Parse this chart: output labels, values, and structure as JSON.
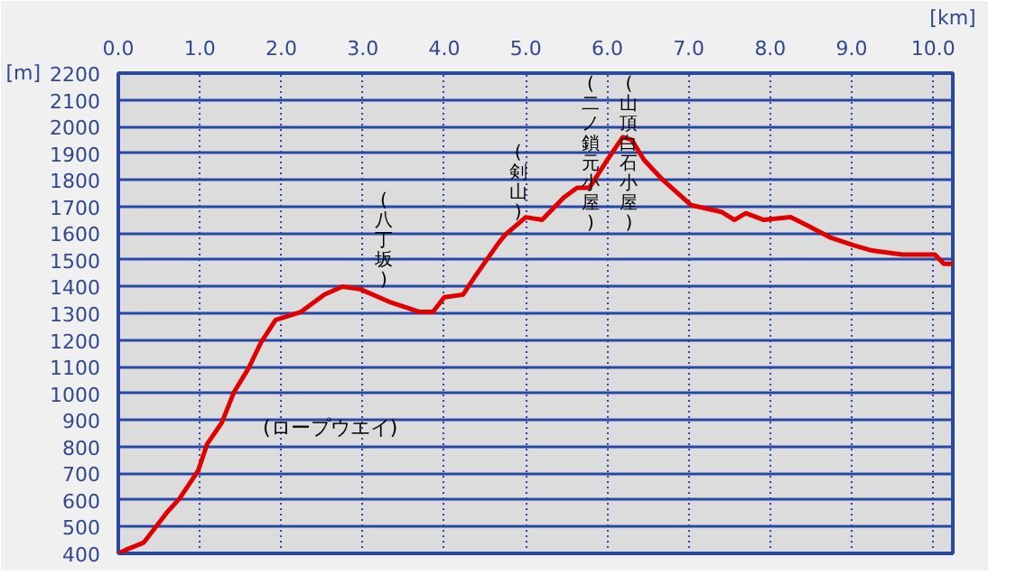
{
  "chart_data": {
    "type": "line",
    "xlabel": "[km]",
    "ylabel": "[m]",
    "x": [
      0,
      0.09,
      0.31,
      0.6,
      0.75,
      0.98,
      1.09,
      1.27,
      1.42,
      1.6,
      1.75,
      1.93,
      2.24,
      2.53,
      2.75,
      2.97,
      3.35,
      3.7,
      3.86,
      4.0,
      4.23,
      4.37,
      4.52,
      4.67,
      4.75,
      5.0,
      5.2,
      5.47,
      5.63,
      5.78,
      6.0,
      6.19,
      6.3,
      6.45,
      6.68,
      7.03,
      7.4,
      7.56,
      7.7,
      7.92,
      8.25,
      8.45,
      8.73,
      9.02,
      9.25,
      9.62,
      10.02,
      10.13,
      10.24
    ],
    "series": [
      {
        "color": "#e00000",
        "values": [
          400,
          413,
          440,
          555,
          605,
          710,
          810,
          890,
          1005,
          1095,
          1190,
          1275,
          1305,
          1370,
          1400,
          1390,
          1340,
          1305,
          1305,
          1360,
          1370,
          1435,
          1500,
          1565,
          1595,
          1660,
          1650,
          1735,
          1770,
          1770,
          1875,
          1960,
          1950,
          1875,
          1800,
          1705,
          1680,
          1650,
          1675,
          1650,
          1660,
          1630,
          1585,
          1555,
          1535,
          1520,
          1520,
          1485,
          1485
        ]
      }
    ],
    "xlim": [
      0,
      10.24
    ],
    "ylim": [
      400,
      2200
    ],
    "xticks": [
      {
        "value": 0,
        "label": "0.0"
      },
      {
        "value": 1,
        "label": "1.0"
      },
      {
        "value": 2,
        "label": "2.0"
      },
      {
        "value": 3,
        "label": "3.0"
      },
      {
        "value": 4,
        "label": "4.0"
      },
      {
        "value": 5,
        "label": "5.0"
      },
      {
        "value": 6,
        "label": "6.0"
      },
      {
        "value": 7,
        "label": "7.0"
      },
      {
        "value": 8,
        "label": "8.0"
      },
      {
        "value": 9,
        "label": "9.0"
      },
      {
        "value": 10,
        "label": "10.0"
      }
    ],
    "yticks": [
      400,
      500,
      600,
      700,
      800,
      900,
      1000,
      1100,
      1200,
      1300,
      1400,
      1500,
      1600,
      1700,
      1800,
      1900,
      2000,
      2100,
      2200
    ],
    "grid": true,
    "marker": "none",
    "line_style": "solid",
    "annotations": [
      "(ロープウエイ)",
      "(八丁坂)",
      "(剣山)",
      "(二ノ鎖元小屋)",
      "(山頂白石小屋)"
    ]
  }
}
